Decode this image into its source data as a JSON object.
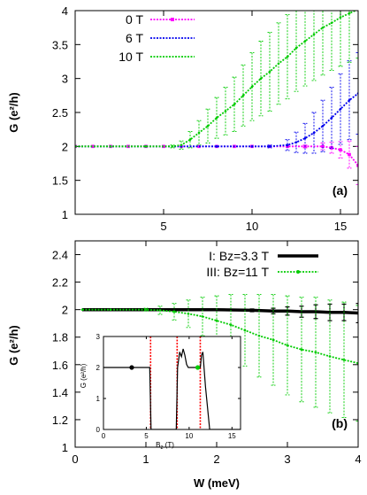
{
  "chart_data": [
    {
      "type": "line",
      "panel_label": "(a)",
      "ylabel": "G (e²/h)",
      "xlim": [
        0,
        16
      ],
      "ylim": [
        1,
        4
      ],
      "xticks": [
        "5",
        "10",
        "15"
      ],
      "xtick_values": [
        5,
        10,
        15
      ],
      "yticks": [
        "1",
        "1.5",
        "2",
        "2.5",
        "3",
        "3.5",
        "4"
      ],
      "ytick_values": [
        1,
        1.5,
        2,
        2.5,
        3,
        3.5,
        4
      ],
      "legend_position": "top-left",
      "series": [
        {
          "name": "0 T",
          "color": "#ff00ff",
          "marker": "square",
          "x": [
            0,
            1,
            2,
            3,
            4,
            5,
            6,
            7,
            8,
            9,
            10,
            11,
            12,
            13,
            14,
            14.5,
            15,
            15.5,
            16
          ],
          "y": [
            2,
            2,
            2,
            2,
            2,
            2,
            2,
            2,
            2,
            2,
            2,
            2,
            2,
            2,
            2,
            1.98,
            1.95,
            1.88,
            1.72
          ],
          "err": [
            0,
            0,
            0,
            0,
            0,
            0,
            0,
            0,
            0,
            0,
            0,
            0,
            0,
            0.02,
            0.05,
            0.08,
            0.12,
            0.2,
            0.28
          ]
        },
        {
          "name": "6 T",
          "color": "#0000ee",
          "marker": "dot",
          "x": [
            0,
            2,
            4,
            6,
            8,
            10,
            11,
            12,
            12.5,
            13,
            13.5,
            14,
            14.5,
            15,
            15.5,
            16
          ],
          "y": [
            2,
            2,
            2,
            2,
            2,
            2,
            2,
            2.02,
            2.06,
            2.12,
            2.2,
            2.3,
            2.42,
            2.55,
            2.68,
            2.78
          ],
          "err": [
            0,
            0,
            0,
            0,
            0,
            0,
            0.02,
            0.08,
            0.15,
            0.22,
            0.3,
            0.38,
            0.45,
            0.52,
            0.58,
            0.6
          ]
        },
        {
          "name": "10 T",
          "color": "#00cc00",
          "marker": "dot",
          "x": [
            0,
            2,
            4,
            5.5,
            6,
            6.5,
            7,
            7.5,
            8,
            8.5,
            9,
            9.5,
            10,
            10.5,
            11,
            11.5,
            12,
            12.5,
            13,
            13.5,
            14,
            14.5,
            15,
            15.5,
            16
          ],
          "y": [
            2,
            2,
            2,
            2,
            2.02,
            2.1,
            2.2,
            2.3,
            2.42,
            2.52,
            2.62,
            2.75,
            2.88,
            3.0,
            3.1,
            3.22,
            3.32,
            3.45,
            3.55,
            3.65,
            3.75,
            3.82,
            3.9,
            3.96,
            4.02
          ],
          "err": [
            0,
            0,
            0,
            0.02,
            0.06,
            0.12,
            0.18,
            0.25,
            0.3,
            0.35,
            0.4,
            0.45,
            0.5,
            0.55,
            0.58,
            0.6,
            0.62,
            0.64,
            0.66,
            0.68,
            0.7,
            0.7,
            0.72,
            0.72,
            0.72
          ]
        }
      ]
    },
    {
      "type": "line",
      "panel_label": "(b)",
      "xlabel": "W (meV)",
      "ylabel": "G (e²/h)",
      "xlim": [
        0,
        4
      ],
      "ylim": [
        1,
        2.5
      ],
      "xticks": [
        "0",
        "1",
        "2",
        "3",
        "4"
      ],
      "xtick_values": [
        0,
        1,
        2,
        3,
        4
      ],
      "yticks": [
        "1",
        "1.2",
        "1.4",
        "1.6",
        "1.8",
        "2",
        "2.2",
        "2.4"
      ],
      "ytick_values": [
        1,
        1.2,
        1.4,
        1.6,
        1.8,
        2,
        2.2,
        2.4
      ],
      "legend_position": "top-right",
      "series": [
        {
          "name": "I: Bz=3.3 T",
          "color": "#000000",
          "marker": "none",
          "x": [
            0.1,
            0.5,
            1,
            1.5,
            2,
            2.5,
            2.8,
            3,
            3.2,
            3.4,
            3.6,
            3.8,
            4
          ],
          "y": [
            2,
            2,
            2,
            2,
            2,
            1.995,
            1.99,
            1.99,
            1.985,
            1.985,
            1.98,
            1.98,
            1.975
          ],
          "err": [
            0,
            0,
            0,
            0.003,
            0.006,
            0.01,
            0.02,
            0.03,
            0.04,
            0.05,
            0.06,
            0.06,
            0.07
          ]
        },
        {
          "name": "III: Bz=11 T",
          "color": "#00cc00",
          "marker": "dot",
          "x": [
            0.1,
            0.5,
            1,
            1.2,
            1.4,
            1.6,
            1.8,
            2,
            2.2,
            2.4,
            2.6,
            2.8,
            3,
            3.2,
            3.4,
            3.6,
            3.8,
            4
          ],
          "y": [
            2,
            2,
            2,
            1.995,
            1.985,
            1.97,
            1.95,
            1.92,
            1.89,
            1.85,
            1.81,
            1.78,
            1.74,
            1.71,
            1.69,
            1.66,
            1.635,
            1.61
          ],
          "err": [
            0,
            0,
            0.01,
            0.03,
            0.06,
            0.1,
            0.14,
            0.18,
            0.22,
            0.26,
            0.3,
            0.33,
            0.36,
            0.38,
            0.4,
            0.41,
            0.42,
            0.42
          ]
        }
      ]
    },
    {
      "type": "line",
      "panel_label": "inset",
      "xlabel": "B",
      "xlabel_sub": "z",
      "xlabel_unit": " (T)",
      "ylabel": "G (e²/h)",
      "xlim": [
        0,
        16
      ],
      "ylim": [
        0,
        3
      ],
      "xticks": [
        "0",
        "5",
        "10",
        "15"
      ],
      "xtick_values": [
        0,
        5,
        10,
        15
      ],
      "yticks": [
        "0",
        "1",
        "2",
        "3"
      ],
      "ytick_values": [
        0,
        1,
        2,
        3
      ],
      "vlines_x": [
        5.5,
        8.6,
        11.3
      ],
      "vline_color": "#ff0000",
      "markers": [
        {
          "x": 3.3,
          "y": 2,
          "color": "#000000"
        },
        {
          "x": 11,
          "y": 2,
          "color": "#00cc00"
        }
      ],
      "series": [
        {
          "name": "",
          "color": "#000000",
          "x": [
            0,
            5.4,
            5.55,
            8.5,
            8.65,
            8.9,
            9.1,
            9.3,
            9.5,
            9.7,
            9.9,
            10.2,
            10.6,
            11,
            11.3,
            11.45,
            11.6,
            11.9,
            12.4,
            16
          ],
          "y": [
            2,
            2,
            0,
            0,
            2,
            2.5,
            2.35,
            2.6,
            2.4,
            2.1,
            2,
            2,
            2,
            2,
            2,
            2.4,
            2.5,
            1.4,
            0,
            0
          ]
        }
      ]
    }
  ]
}
